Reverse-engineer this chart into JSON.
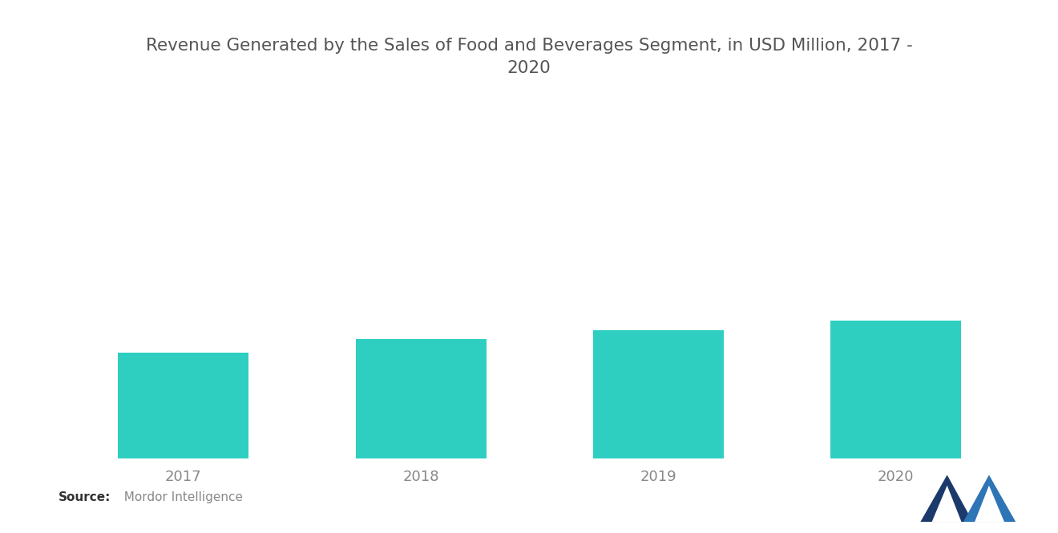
{
  "title": "Revenue Generated by the Sales of Food and Beverages Segment, in USD Million, 2017 -\n2020",
  "categories": [
    "2017",
    "2018",
    "2019",
    "2020"
  ],
  "values": [
    55,
    62,
    67,
    72
  ],
  "bar_color": "#2ECFC0",
  "background_color": "#ffffff",
  "title_fontsize": 15.5,
  "tick_fontsize": 13,
  "ylim": [
    0,
    200
  ],
  "bar_width": 0.55,
  "title_color": "#555555",
  "tick_color": "#888888",
  "source_bold": "Source:",
  "source_rest": "  Mordor Intelligence"
}
